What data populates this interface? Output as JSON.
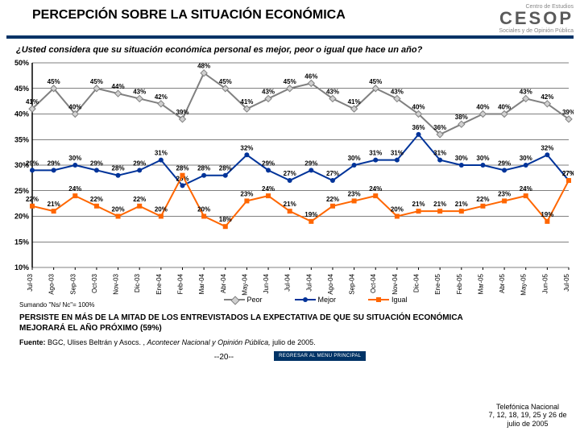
{
  "header": {
    "title": "PERCEPCIÓN SOBRE LA SITUACIÓN ECONÓMICA",
    "logo_big": "CESOP",
    "logo_top": "Centro de Estudios",
    "logo_bot": "Sociales y de Opinión Pública"
  },
  "subtitle": "¿Usted considera que su situación económica personal es mejor, peor o igual que hace un año?",
  "chart": {
    "ylim": [
      10,
      50
    ],
    "ytick_step": 5,
    "ylabels": [
      "10%",
      "15%",
      "20%",
      "25%",
      "30%",
      "35%",
      "40%",
      "45%",
      "50%"
    ],
    "categories": [
      "Jul-03",
      "Ago-03",
      "Sep-03",
      "Oct-03",
      "Nov-03",
      "Dic-03",
      "Ene-04",
      "Feb-04",
      "Mar-04",
      "Abr-04",
      "May-04",
      "Jun-04",
      "Jul-04",
      "Jul-04",
      "Ago-04",
      "Sep-04",
      "Oct-04",
      "Nov-04",
      "Dic-04",
      "Ene-05",
      "Feb-05",
      "Mar-05",
      "Abr-05",
      "May-05",
      "Jun-05",
      "Jul-05"
    ],
    "series": [
      {
        "name": "Peor",
        "color": "#808080",
        "marker": "diamond",
        "marker_fill": "#d0d0d0",
        "values": [
          41,
          45,
          40,
          45,
          44,
          43,
          42,
          39,
          48,
          45,
          41,
          43,
          45,
          46,
          43,
          41,
          45,
          43,
          40,
          36,
          38,
          40,
          40,
          43,
          42,
          39
        ]
      },
      {
        "name": "Mejor",
        "color": "#003399",
        "marker": "circle",
        "marker_fill": "#003399",
        "values": [
          29,
          29,
          30,
          29,
          28,
          29,
          31,
          26,
          28,
          28,
          32,
          29,
          27,
          29,
          27,
          30,
          31,
          31,
          36,
          31,
          30,
          30,
          29,
          30,
          32,
          27
        ]
      },
      {
        "name": "Igual",
        "color": "#ff6600",
        "marker": "square",
        "marker_fill": "#ff6600",
        "values": [
          22,
          21,
          24,
          22,
          20,
          22,
          20,
          28,
          20,
          18,
          23,
          24,
          21,
          19,
          22,
          23,
          24,
          20,
          21,
          21,
          21,
          22,
          23,
          24,
          19,
          27
        ]
      }
    ],
    "label_fontsize": 8,
    "axis_fontsize": 9,
    "grid_color": "#000",
    "background": "#ffffff"
  },
  "legend": {
    "items": [
      "Peor",
      "Mejor",
      "Igual"
    ]
  },
  "footnote": "Sumando \"Ns/ Nc\"= 100%",
  "bottom_text": "PERSISTE EN MÁS DE LA MITAD DE LOS ENTREVISTADOS LA EXPECTATIVA DE QUE SU SITUACIÓN ECONÓMICA  MEJORARÁ EL AÑO PRÓXIMO (59%)",
  "fuente_pre": "Fuente: ",
  "fuente_main": "BGC, Ulises Beltrán y Asocs. , ",
  "fuente_ital": "Acontecer Nacional y Opinión Pública, ",
  "fuente_post": "julio de 2005.",
  "sidebox": "Telefónica Nacional\n7, 12, 18, 19, 25 y 26 de julio de 2005",
  "pager": "--20--",
  "menu": "REGRESAR AL MENU PRINCIPAL"
}
